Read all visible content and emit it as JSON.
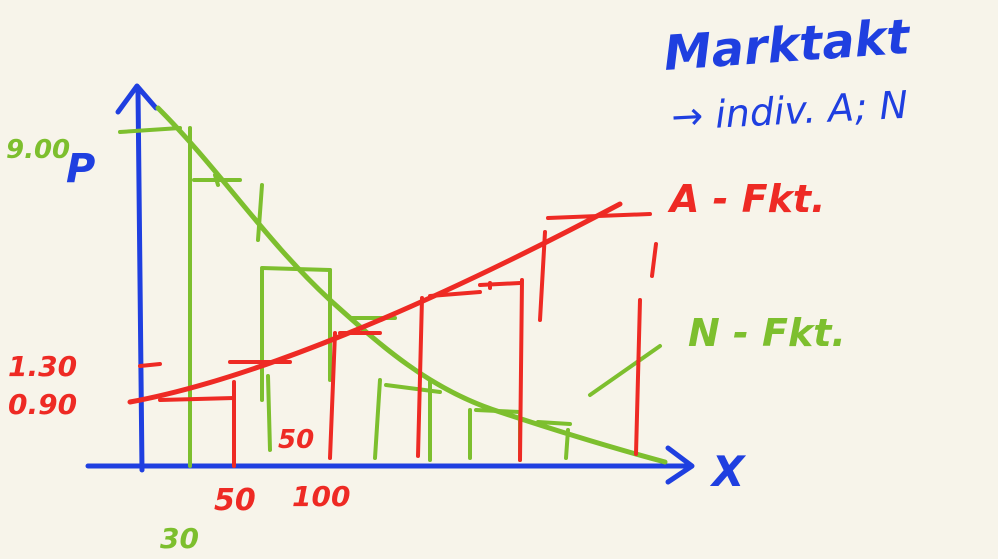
{
  "title": {
    "line1": "Marktakt",
    "line2": "→ indiv. A; N"
  },
  "axes": {
    "y_label": "P",
    "x_label": "X"
  },
  "y_ticks": {
    "top": "9.00",
    "mid": "1.30",
    "low": "0.90"
  },
  "x_ticks": {
    "a": "30",
    "b": "50",
    "c": "100",
    "step": "50"
  },
  "curves": {
    "supply": "A - Fkt.",
    "demand": "N - Fkt."
  },
  "colors": {
    "axes": "#1f3fe0",
    "supply": "#ee2a24",
    "demand": "#7dbf2e",
    "title": "#1f3fe0"
  }
}
